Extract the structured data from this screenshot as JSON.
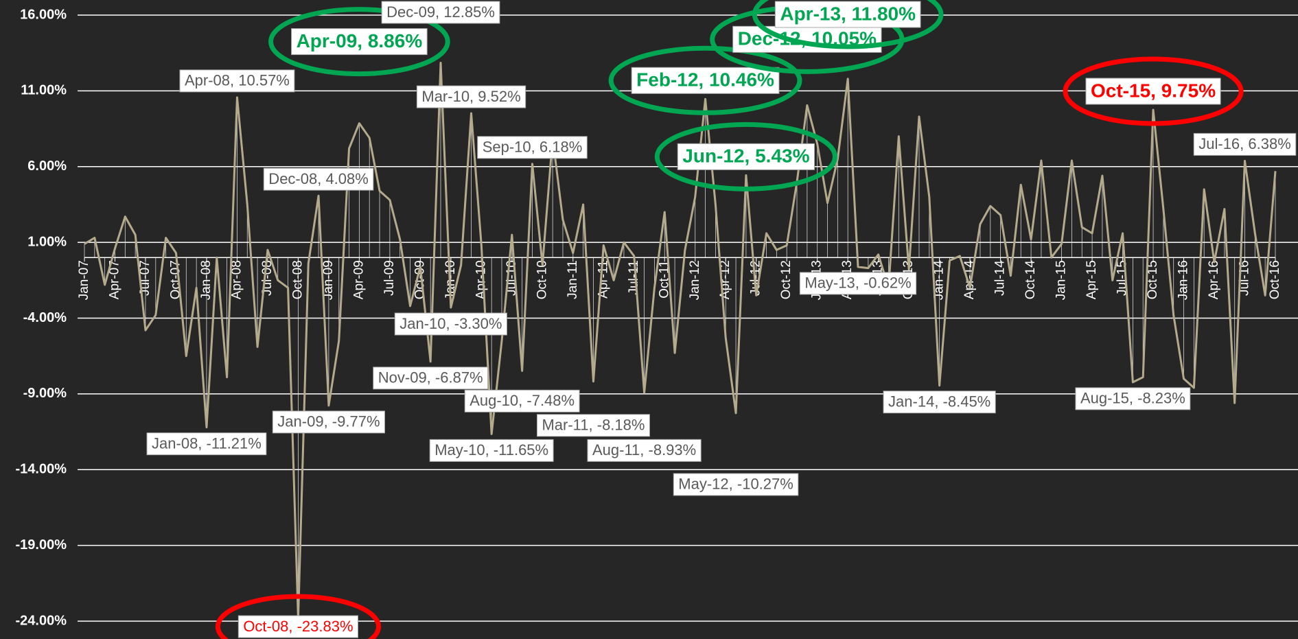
{
  "chart_data": {
    "type": "line",
    "categories": [
      "Jan-07",
      null,
      null,
      "Apr-07",
      null,
      null,
      "Jul-07",
      null,
      null,
      "Oct-07",
      null,
      null,
      "Jan-08",
      null,
      null,
      "Apr-08",
      null,
      null,
      "Jul-08",
      null,
      null,
      "Oct-08",
      null,
      null,
      "Jan-09",
      null,
      null,
      "Apr-09",
      null,
      null,
      "Jul-09",
      null,
      null,
      "Oct-09",
      null,
      null,
      "Jan-10",
      null,
      null,
      "Apr-10",
      null,
      null,
      "Jul-10",
      null,
      null,
      "Oct-10",
      null,
      null,
      "Jan-11",
      null,
      null,
      "Apr-11",
      null,
      null,
      "Jul-11",
      null,
      null,
      "Oct-11",
      null,
      null,
      "Jan-12",
      null,
      null,
      "Apr-12",
      null,
      null,
      "Jul-12",
      null,
      null,
      "Oct-12",
      null,
      null,
      "Jan-13",
      null,
      null,
      "Apr-13",
      null,
      null,
      "Jul-13",
      null,
      null,
      "Oct-13",
      null,
      null,
      "Jan-14",
      null,
      null,
      "Apr-14",
      null,
      null,
      "Jul-14",
      null,
      null,
      "Oct-14",
      null,
      null,
      "Jan-15",
      null,
      null,
      "Apr-15",
      null,
      null,
      "Jul-15",
      null,
      null,
      "Oct-15",
      null,
      null,
      "Jan-16",
      null,
      null,
      "Apr-16",
      null,
      null,
      "Jul-16",
      null,
      null,
      "Oct-16"
    ],
    "series": [
      {
        "color": "#b5ab8c",
        "values": [
          0.9,
          1.3,
          -1.8,
          0.6,
          2.7,
          1.5,
          -4.8,
          -3.8,
          1.3,
          0.3,
          -6.5,
          -2.0,
          -11.21,
          0.0,
          -7.9,
          10.57,
          3.5,
          -5.9,
          0.5,
          -1.5,
          -2.0,
          -23.83,
          -0.4,
          4.08,
          -9.77,
          -5.5,
          7.2,
          8.86,
          7.9,
          4.4,
          3.8,
          1.2,
          -3.2,
          -0.6,
          -6.87,
          12.85,
          -3.3,
          -0.5,
          9.52,
          0.8,
          -11.65,
          -5.5,
          1.5,
          -7.48,
          6.18,
          -0.5,
          7.9,
          2.5,
          0.3,
          3.5,
          -8.18,
          0.8,
          -1.5,
          1.0,
          0.1,
          -8.93,
          -2.0,
          3.0,
          -6.3,
          0.5,
          4.0,
          10.46,
          3.5,
          -5.3,
          -10.27,
          5.43,
          -2.5,
          1.6,
          0.5,
          0.8,
          5.0,
          10.05,
          7.5,
          3.6,
          6.5,
          11.8,
          -0.62,
          -0.7,
          0.2,
          -2.0,
          8.0,
          -0.8,
          9.3,
          4.0,
          -8.45,
          -0.2,
          0.1,
          -2.0,
          2.2,
          3.4,
          2.8,
          -1.2,
          4.8,
          1.2,
          6.4,
          0.0,
          0.9,
          6.4,
          2.0,
          1.6,
          5.4,
          -1.5,
          1.6,
          -8.23,
          -7.9,
          9.75,
          3.2,
          -3.8,
          -8.0,
          -8.6,
          4.5,
          -0.3,
          3.2,
          -9.6,
          6.38,
          1.6,
          -2.5,
          5.7
        ],
        "value_labels": [
          null,
          null,
          null,
          null,
          null,
          null,
          null,
          null,
          null,
          null,
          null,
          null,
          "Jan-08, -11.21%",
          null,
          null,
          "Apr-08, 10.57%",
          null,
          null,
          null,
          null,
          null,
          "Oct-08, -23.83%",
          null,
          "Dec-08, 4.08%",
          "Jan-09, -9.77%",
          null,
          null,
          "Apr-09, 8.86%",
          null,
          null,
          null,
          null,
          null,
          null,
          "Nov-09, -6.87%",
          "Dec-09, 12.85%",
          "Jan-10, -3.30%",
          null,
          "Mar-10, 9.52%",
          null,
          "May-10, -11.65%",
          null,
          null,
          "Aug-10, -7.48%",
          "Sep-10, 6.18%",
          null,
          null,
          null,
          null,
          null,
          "Mar-11, -8.18%",
          null,
          null,
          null,
          null,
          "Aug-11, -8.93%",
          null,
          null,
          null,
          null,
          null,
          "Feb-12, 10.46%",
          null,
          null,
          "May-12, -10.27%",
          "Jun-12, 5.43%",
          null,
          null,
          null,
          null,
          null,
          "Dec-12, 10.05%",
          null,
          null,
          null,
          "Apr-13, 11.80%",
          "May-13, -0.62%",
          null,
          null,
          null,
          null,
          null,
          null,
          null,
          "Jan-14, -8.45%",
          null,
          null,
          null,
          null,
          null,
          null,
          null,
          null,
          null,
          null,
          null,
          null,
          null,
          null,
          null,
          null,
          null,
          null,
          "Aug-15, -8.23%",
          null,
          "Oct-15, 9.75%",
          null,
          null,
          null,
          null,
          null,
          null,
          null,
          null,
          "Jul-16, 6.38%",
          null,
          null,
          null
        ],
        "value_label_colors": [
          null,
          null,
          null,
          null,
          null,
          null,
          null,
          null,
          null,
          null,
          null,
          null,
          null,
          null,
          null,
          null,
          null,
          null,
          null,
          null,
          null,
          "#ff0000",
          null,
          null,
          null,
          null,
          null,
          "#00a651",
          null,
          null,
          null,
          null,
          null,
          null,
          null,
          null,
          null,
          null,
          null,
          null,
          null,
          null,
          null,
          null,
          null,
          null,
          null,
          null,
          null,
          null,
          null,
          null,
          null,
          null,
          null,
          null,
          null,
          null,
          null,
          null,
          null,
          "#00a651",
          null,
          null,
          null,
          "#00a651",
          null,
          null,
          null,
          null,
          null,
          "#00a651",
          null,
          null,
          null,
          "#00a651",
          null,
          null,
          null,
          null,
          null,
          null,
          null,
          null,
          null,
          null,
          null,
          null,
          null,
          null,
          null,
          null,
          null,
          null,
          null,
          null,
          null,
          null,
          null,
          null,
          null,
          null,
          null,
          null,
          null,
          "#ff0000",
          null,
          "#00a651",
          null,
          null,
          null,
          null,
          null,
          null,
          null,
          null,
          null,
          null,
          null,
          null
        ]
      }
    ],
    "ylim": [
      -24,
      16
    ],
    "yticks": [
      {
        "value": -24,
        "label": "-24.00%"
      },
      {
        "value": -19,
        "label": "-19.00%"
      },
      {
        "value": -14,
        "label": "-14.00%"
      },
      {
        "value": -9,
        "label": "-9.00%"
      },
      {
        "value": -4,
        "label": "-4.00%"
      },
      {
        "value": 1,
        "label": "1.00%"
      },
      {
        "value": 6,
        "label": "6.00%"
      },
      {
        "value": 11,
        "label": "11.00%"
      },
      {
        "value": 16,
        "label": "16.00%"
      }
    ],
    "grid": true
  }
}
